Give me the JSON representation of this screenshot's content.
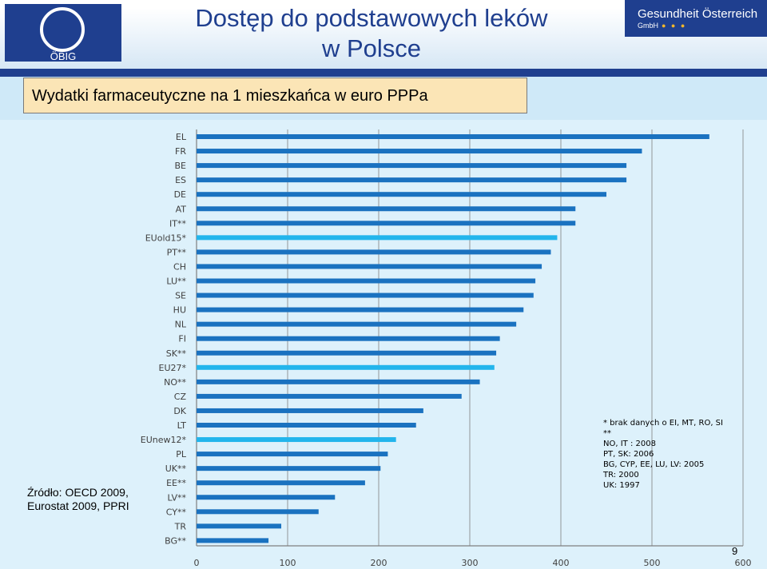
{
  "header": {
    "org_logo": "ÖBIG",
    "title_line1": "Dostęp do podstawowych leków",
    "title_line2": "w Polsce",
    "brand_name": "Gesundheit Österreich",
    "brand_sub": "GmbH"
  },
  "subtitle": "Wydatki farmaceutyczne na 1 mieszkańca w euro PPPa",
  "source_line1": "Źródło:  OECD 2009,",
  "source_line2": "Eurostat 2009, PPRI",
  "note": {
    "line1": "* brak danych o EI, MT, RO, SI",
    "line2": "**",
    "line3": "NO, IT : 2008",
    "line4": "PT, SK: 2006",
    "line5": "BG, CYP, EE, LU, LV: 2005",
    "line6": "TR: 2000",
    "line7": "UK: 1997"
  },
  "page_number": "9",
  "colors": {
    "bar": "#1a72c0",
    "bar_highlight": "#22b5ec",
    "grid": "#7f7f7f",
    "label": "#404040"
  },
  "chart_data": {
    "type": "bar",
    "orientation": "horizontal",
    "title": "Wydatki farmaceutyczne na 1 mieszkańca w euro PPPa",
    "xlim": [
      0,
      600
    ],
    "xticks": [
      0,
      100,
      200,
      300,
      400,
      500,
      600
    ],
    "grid": true,
    "categories": [
      "EL",
      "FR",
      "BE",
      "ES",
      "DE",
      "AT",
      "IT**",
      "EUold15*",
      "PT**",
      "CH",
      "LU**",
      "SE",
      "HU",
      "NL",
      "FI",
      "SK**",
      "EU27*",
      "NO**",
      "CZ",
      "DK",
      "LT",
      "EUnew12*",
      "PL",
      "UK**",
      "EE**",
      "LV**",
      "CY**",
      "TR",
      "BG**"
    ],
    "values": [
      563,
      489,
      472,
      472,
      450,
      416,
      416,
      396,
      389,
      379,
      372,
      370,
      359,
      351,
      333,
      329,
      327,
      311,
      291,
      249,
      241,
      219,
      210,
      202,
      185,
      152,
      134,
      93,
      79
    ],
    "highlighted": [
      "EUold15*",
      "EU27*",
      "EUnew12*"
    ]
  }
}
